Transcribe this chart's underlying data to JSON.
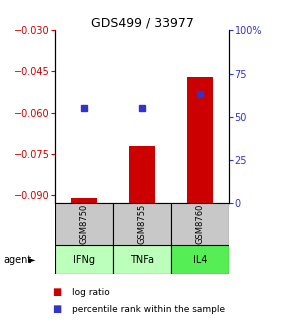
{
  "title": "GDS499 / 33977",
  "samples": [
    "GSM8750",
    "GSM8755",
    "GSM8760"
  ],
  "agents": [
    "IFNg",
    "TNFa",
    "IL4"
  ],
  "log_ratios": [
    -0.091,
    -0.072,
    -0.047
  ],
  "percentile_ranks": [
    55,
    55,
    63
  ],
  "ylim_left": [
    -0.093,
    -0.03
  ],
  "ylim_right": [
    0,
    100
  ],
  "yticks_left": [
    -0.09,
    -0.075,
    -0.06,
    -0.045,
    -0.03
  ],
  "yticks_right": [
    0,
    25,
    50,
    75,
    100
  ],
  "right_tick_labels": [
    "0",
    "25",
    "50",
    "75",
    "100%"
  ],
  "bar_color": "#cc0000",
  "dot_color": "#3333cc",
  "agent_colors": [
    "#bbffbb",
    "#bbffbb",
    "#55ee55"
  ],
  "sample_box_color": "#c8c8c8",
  "grid_color": "#888888",
  "left_tick_color": "#cc0000",
  "right_tick_color": "#3333cc",
  "legend_bar_label": "log ratio",
  "legend_dot_label": "percentile rank within the sample"
}
